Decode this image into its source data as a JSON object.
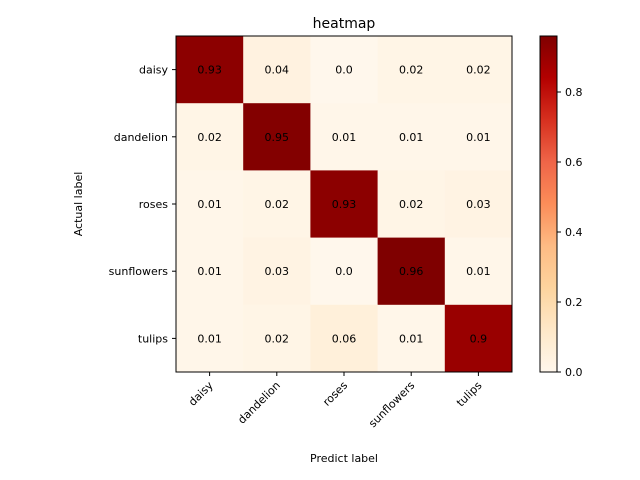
{
  "chart_data": {
    "type": "heatmap",
    "title": "heatmap",
    "xlabel": "Predict label",
    "ylabel": "Actual label",
    "x_categories": [
      "daisy",
      "dandelion",
      "roses",
      "sunflowers",
      "tulips"
    ],
    "y_categories": [
      "daisy",
      "dandelion",
      "roses",
      "sunflowers",
      "tulips"
    ],
    "values": [
      [
        0.93,
        0.04,
        0.0,
        0.02,
        0.02
      ],
      [
        0.02,
        0.95,
        0.01,
        0.01,
        0.01
      ],
      [
        0.01,
        0.02,
        0.93,
        0.02,
        0.03
      ],
      [
        0.01,
        0.03,
        0.0,
        0.96,
        0.01
      ],
      [
        0.01,
        0.02,
        0.06,
        0.01,
        0.9
      ]
    ],
    "value_labels": [
      [
        "0.93",
        "0.04",
        "0.0",
        "0.02",
        "0.02"
      ],
      [
        "0.02",
        "0.95",
        "0.01",
        "0.01",
        "0.01"
      ],
      [
        "0.01",
        "0.02",
        "0.93",
        "0.02",
        "0.03"
      ],
      [
        "0.01",
        "0.03",
        "0.0",
        "0.96",
        "0.01"
      ],
      [
        "0.01",
        "0.02",
        "0.06",
        "0.01",
        "0.9"
      ]
    ],
    "colormap": "OrRd",
    "vmin": 0.0,
    "vmax": 0.96,
    "colorbar_ticks": [
      0.0,
      0.2,
      0.4,
      0.6,
      0.8
    ],
    "colorbar_tick_labels": [
      "0.0",
      "0.2",
      "0.4",
      "0.6",
      "0.8"
    ]
  }
}
